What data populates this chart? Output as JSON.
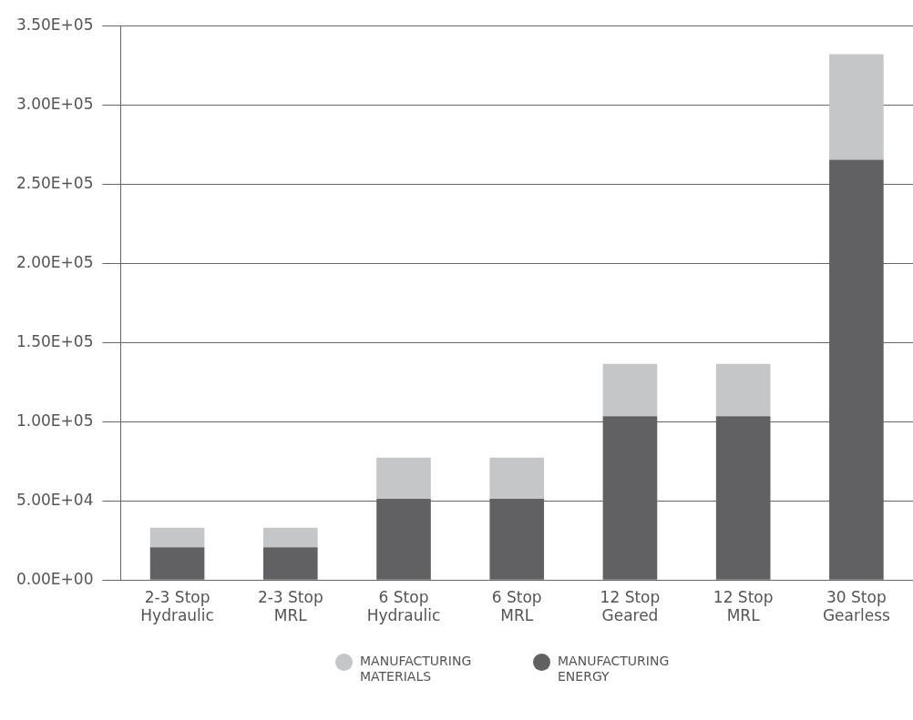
{
  "chart_data": {
    "type": "bar",
    "stacked": true,
    "categories": [
      "2-3 Stop\nHydraulic",
      "2-3 Stop\nMRL",
      "6 Stop\nHydraulic",
      "6 Stop\nMRL",
      "12 Stop\nGeared",
      "12 Stop\nMRL",
      "30 Stop\nGearless"
    ],
    "series": [
      {
        "name": "MANUFACTURING ENERGY",
        "color": "#616163",
        "values": [
          20600,
          20600,
          51300,
          51300,
          103400,
          103400,
          265300
        ]
      },
      {
        "name": "MANUFACTURING MATERIALS",
        "color": "#c5c6c8",
        "values": [
          12400,
          12400,
          25900,
          25900,
          33000,
          33000,
          66700
        ]
      }
    ],
    "ylim": [
      0,
      350000
    ],
    "yticks": [
      {
        "value": 0,
        "label": "0.00E+00"
      },
      {
        "value": 50000,
        "label": "5.00E+04"
      },
      {
        "value": 100000,
        "label": "1.00E+05"
      },
      {
        "value": 150000,
        "label": "1.50E+05"
      },
      {
        "value": 200000,
        "label": "2.00E+05"
      },
      {
        "value": 250000,
        "label": "2.50E+05"
      },
      {
        "value": 300000,
        "label": "3.00E+05"
      },
      {
        "value": 350000,
        "label": "3.50E+05"
      }
    ],
    "grid": "y",
    "legend": "bottom"
  }
}
